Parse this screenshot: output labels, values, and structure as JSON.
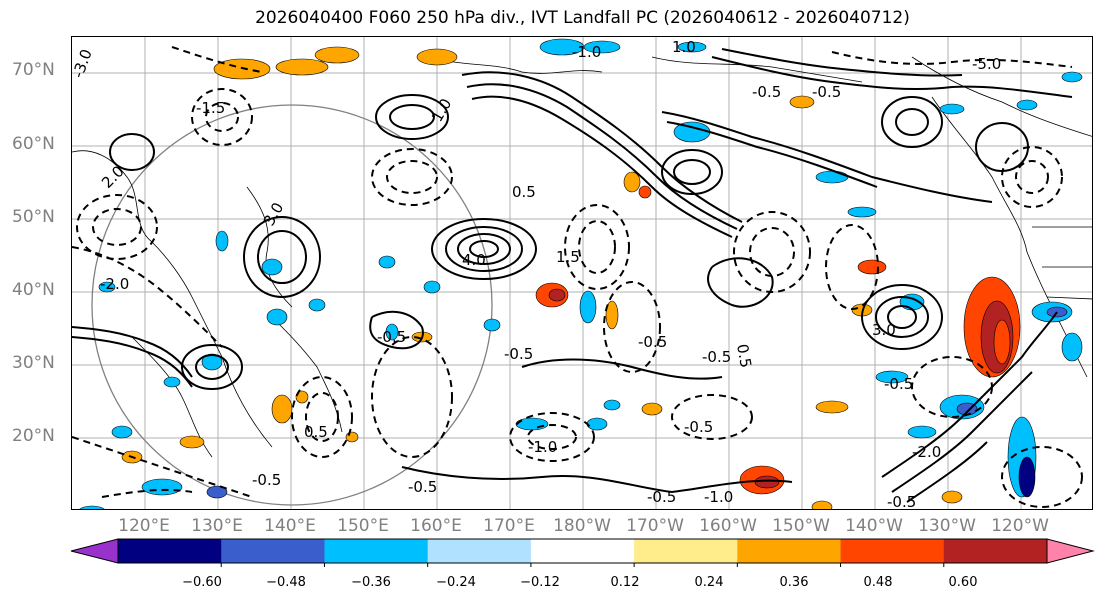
{
  "title": "2026040400 F060 250 hPa div., IVT Landfall PC (2026040612 - 2026040712)",
  "lat_labels": [
    "70°N",
    "60°N",
    "50°N",
    "40°N",
    "30°N",
    "20°N"
  ],
  "lon_labels": [
    "120°E",
    "130°E",
    "140°E",
    "150°E",
    "160°E",
    "170°E",
    "180°W",
    "170°W",
    "160°W",
    "150°W",
    "140°W",
    "130°W",
    "120°W"
  ],
  "contour_labels": [
    "-3.0",
    "-1.5",
    "-0.5",
    "-0.5",
    "-0.5",
    "-0.5",
    "-0.5",
    "-0.5",
    "-1.0",
    "-0.5",
    "-1.0",
    "-0.5",
    "-0.5",
    "-0.5",
    "-2.0",
    "-2.0",
    "0.5",
    "0.5",
    "0.5",
    "1.0",
    "1.0",
    "1.5",
    "2.0",
    "3.0",
    "3.0",
    "4.0",
    "-5.0",
    "-1.0",
    "-0.5",
    "-0.5"
  ],
  "colorbar": {
    "colors": [
      "#9932CC",
      "#000080",
      "#3A5FCD",
      "#00BFFF",
      "#B0E2FF",
      "#FFFFFF",
      "#FFEC8B",
      "#FFA500",
      "#FF4500",
      "#B22222",
      "#FF82AB"
    ],
    "tick_labels": [
      "−0.60",
      "−0.48",
      "−0.36",
      "−0.24",
      "−0.12",
      "0.12",
      "0.24",
      "0.36",
      "0.48",
      "0.60"
    ]
  },
  "map": {
    "projection": "PlateCarree centered on 180",
    "lon_range": [
      "110°E",
      "110°W"
    ],
    "lat_range": [
      "10°N",
      "75°N"
    ],
    "gridlines": true,
    "fill_colors": {
      "positive": [
        "#FFA500",
        "#FF4500",
        "#B22222"
      ],
      "negative": [
        "#00BFFF",
        "#3A5FCD",
        "#000080"
      ]
    }
  }
}
